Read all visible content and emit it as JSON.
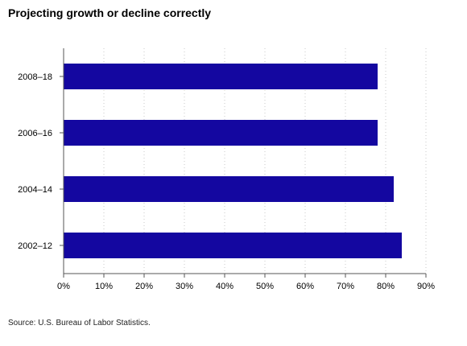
{
  "chart_data": {
    "type": "bar",
    "orientation": "horizontal",
    "title": "Projecting growth or decline correctly",
    "categories": [
      "2008–18",
      "2006–16",
      "2004–14",
      "2002–12"
    ],
    "values": [
      78,
      78,
      82,
      84
    ],
    "xlim": [
      0,
      90
    ],
    "xticks": [
      "0%",
      "10%",
      "20%",
      "30%",
      "40%",
      "50%",
      "60%",
      "70%",
      "80%",
      "90%"
    ],
    "xlabel": "",
    "ylabel": "",
    "grid": "vertical dotted",
    "bar_color": "#1407a0"
  },
  "source": "Source: U.S. Bureau of Labor Statistics."
}
